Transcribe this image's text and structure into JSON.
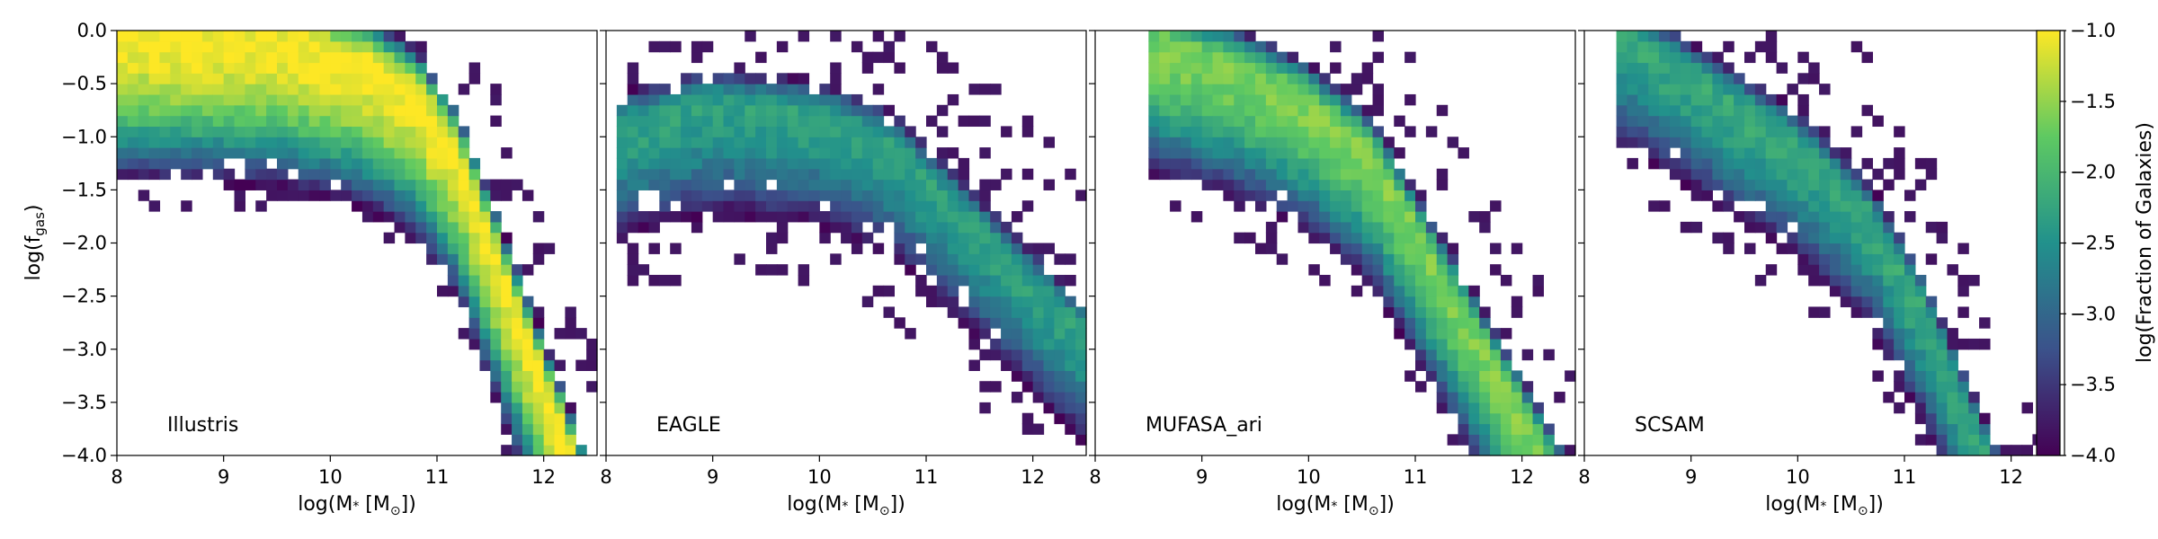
{
  "chart_data": {
    "type": "heatmap",
    "shared_ylabel": "log(f",
    "shared_ylabel_sub": "gas",
    "shared_ylabel_close": ")",
    "shared_xlabel": "log(M",
    "shared_xlabel_sub": "*",
    "shared_xlabel_rest": " [M",
    "shared_xlabel_sun": "⊙",
    "shared_xlabel_close": "])",
    "xlim": [
      8,
      12.5
    ],
    "ylim": [
      -4.0,
      0.0
    ],
    "xticks": [
      "8",
      "9",
      "10",
      "11",
      "12"
    ],
    "yticks": [
      "0.0",
      "−0.5",
      "−1.0",
      "−1.5",
      "−2.0",
      "−2.5",
      "−3.0",
      "−3.5",
      "−4.0"
    ],
    "colorbar": {
      "label": "log(Fraction of Galaxies)",
      "range": [
        -4.0,
        -1.0
      ],
      "ticks": [
        "−1.0",
        "−1.5",
        "−2.0",
        "−2.5",
        "−3.0",
        "−3.5",
        "−4.0"
      ],
      "colormap": "viridis"
    },
    "panels": [
      {
        "name": "Illustris",
        "ridge": [
          [
            8.1,
            -0.05
          ],
          [
            9.5,
            -0.1
          ],
          [
            10.3,
            -0.3
          ],
          [
            10.8,
            -0.6
          ],
          [
            11.2,
            -1.2
          ],
          [
            11.5,
            -2.0
          ]
        ],
        "peak_value": -1.0
      },
      {
        "name": "EAGLE",
        "ridge": [
          [
            8.2,
            -0.9
          ],
          [
            9.0,
            -0.7
          ],
          [
            10.0,
            -0.8
          ],
          [
            10.7,
            -1.1
          ],
          [
            11.2,
            -1.6
          ]
        ],
        "peak_value": -2.3
      },
      {
        "name": "MUFASA_ari",
        "ridge": [
          [
            8.6,
            -0.15
          ],
          [
            9.3,
            -0.35
          ],
          [
            10.0,
            -0.7
          ],
          [
            10.6,
            -1.2
          ],
          [
            11.0,
            -1.9
          ]
        ],
        "peak_value": -1.6
      },
      {
        "name": "SCSAM",
        "ridge": [
          [
            8.4,
            -0.05
          ],
          [
            9.0,
            -0.45
          ],
          [
            10.0,
            -1.1
          ],
          [
            10.7,
            -1.8
          ],
          [
            11.2,
            -2.7
          ],
          [
            11.5,
            -3.4
          ]
        ],
        "peak_value": -2.2
      }
    ]
  }
}
